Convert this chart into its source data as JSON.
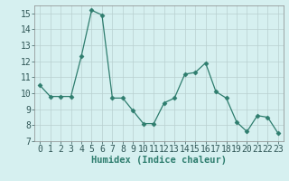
{
  "x": [
    0,
    1,
    2,
    3,
    4,
    5,
    6,
    7,
    8,
    9,
    10,
    11,
    12,
    13,
    14,
    15,
    16,
    17,
    18,
    19,
    20,
    21,
    22,
    23
  ],
  "y": [
    10.5,
    9.8,
    9.8,
    9.8,
    12.3,
    15.2,
    14.9,
    9.7,
    9.7,
    8.9,
    8.1,
    8.1,
    9.4,
    9.7,
    11.2,
    11.3,
    11.9,
    10.1,
    9.7,
    8.2,
    7.6,
    8.6,
    8.5,
    7.5
  ],
  "line_color": "#2e7d6e",
  "marker": "D",
  "marker_size": 2.5,
  "bg_color": "#d6f0f0",
  "grid_color": "#b8d0d0",
  "xlabel": "Humidex (Indice chaleur)",
  "xlim": [
    -0.5,
    23.5
  ],
  "ylim": [
    7,
    15.5
  ],
  "yticks": [
    7,
    8,
    9,
    10,
    11,
    12,
    13,
    14,
    15
  ],
  "xticks": [
    0,
    1,
    2,
    3,
    4,
    5,
    6,
    7,
    8,
    9,
    10,
    11,
    12,
    13,
    14,
    15,
    16,
    17,
    18,
    19,
    20,
    21,
    22,
    23
  ],
  "xlabel_fontsize": 7.5,
  "tick_fontsize": 7
}
